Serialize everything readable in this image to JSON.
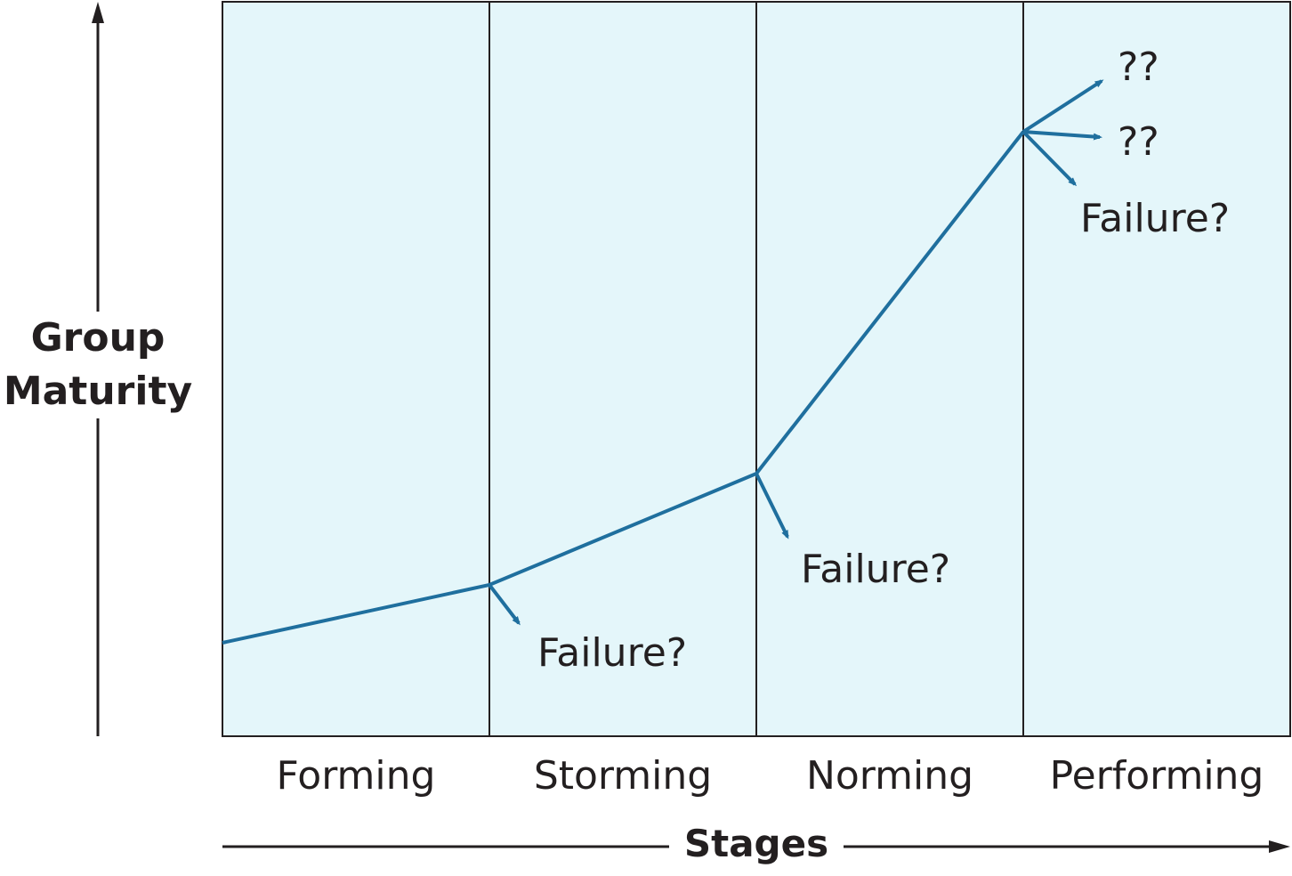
{
  "axes": {
    "y_label_line1": "Group",
    "y_label_line2": "Maturity",
    "x_label": "Stages"
  },
  "stages": [
    "Forming",
    "Storming",
    "Norming",
    "Performing"
  ],
  "annotations": {
    "storming_failure": "Failure?",
    "norming_failure": "Failure?",
    "performing_failure": "Failure?",
    "performing_unknown_1": "??",
    "performing_unknown_2": "??"
  },
  "colors": {
    "panel_fill": "#e4f6fa",
    "line": "#1f6f9e",
    "text": "#231f20",
    "frame": "#231f20"
  }
}
